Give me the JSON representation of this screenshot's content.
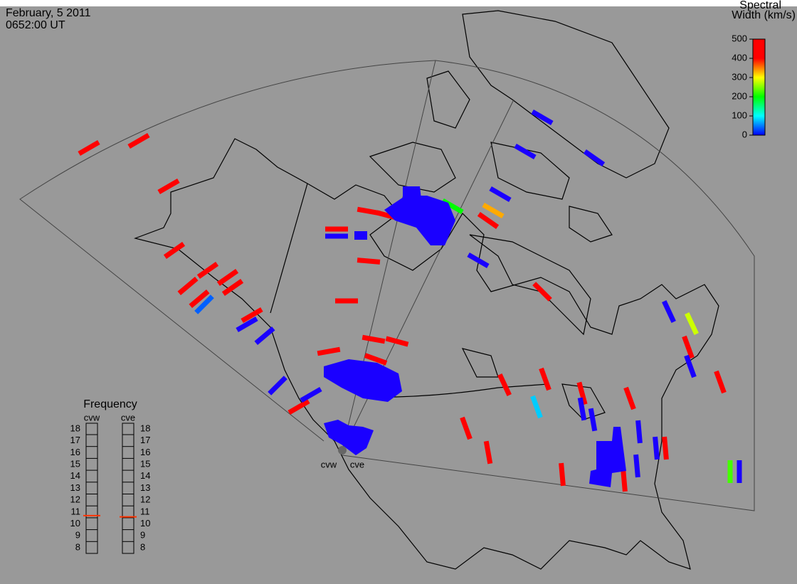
{
  "header": {
    "date": "February, 5 2011",
    "time": "0652:00 UT"
  },
  "colorbar": {
    "title": [
      "Spectral",
      "Width (km/s)"
    ],
    "range": [
      0,
      500
    ],
    "ticks": [
      0,
      100,
      200,
      300,
      400,
      500
    ]
  },
  "frequency": {
    "title": "Frequency",
    "range": [
      8,
      18
    ],
    "ticks": [
      8,
      9,
      10,
      11,
      12,
      13,
      14,
      15,
      16,
      17,
      18
    ],
    "radars": [
      {
        "name": "cvw",
        "value": 10.7
      },
      {
        "name": "cve",
        "value": 10.6
      }
    ]
  },
  "map": {
    "radar_labels": [
      "cvw",
      "cve"
    ]
  }
}
